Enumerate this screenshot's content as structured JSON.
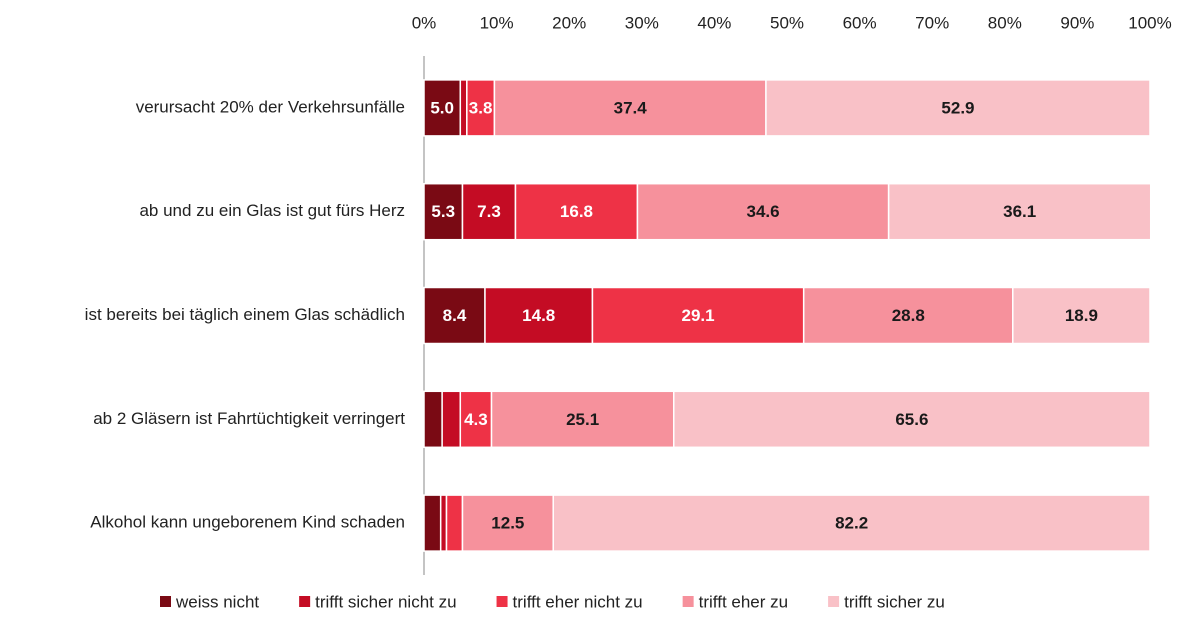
{
  "chart_data": {
    "type": "stacked-bar-horizontal",
    "categories": [
      "verursacht 20% der Verkehrsunfälle",
      "ab und zu ein Glas ist gut fürs Herz",
      "ist bereits bei täglich einem Glas schädlich",
      "ab 2 Gläsern ist Fahrtüchtigkeit verringert",
      "Alkohol kann ungeborenem Kind schaden"
    ],
    "series": [
      {
        "name": "weiss nicht",
        "color": "#7a0a14",
        "label_color": "#ffffff",
        "values": [
          5.0,
          5.3,
          8.4,
          2.5,
          2.3
        ],
        "value_labels": [
          "5.0",
          "5.3",
          "8.4",
          null,
          null
        ]
      },
      {
        "name": "trifft sicher nicht zu",
        "color": "#c40c24",
        "label_color": "#ffffff",
        "values": [
          0.9,
          7.3,
          14.8,
          2.5,
          0.8
        ],
        "value_labels": [
          null,
          "7.3",
          "14.8",
          null,
          null
        ]
      },
      {
        "name": "trifft eher nicht zu",
        "color": "#ee3246",
        "label_color": "#ffffff",
        "values": [
          3.8,
          16.8,
          29.1,
          4.3,
          2.2
        ],
        "value_labels": [
          "3.8",
          "16.8",
          "29.1",
          "4.3",
          null
        ]
      },
      {
        "name": "trifft eher zu",
        "color": "#f6919c",
        "label_color": "#1a1a1a",
        "values": [
          37.4,
          34.6,
          28.8,
          25.1,
          12.5
        ]
      },
      {
        "name": "trifft sicher zu",
        "color": "#f9c1c7",
        "label_color": "#1a1a1a",
        "values": [
          52.9,
          36.1,
          18.9,
          65.6,
          82.2
        ]
      }
    ],
    "xlim": [
      0,
      100
    ],
    "xticks": [
      {
        "value": 0,
        "label": "0%"
      },
      {
        "value": 10,
        "label": "10%"
      },
      {
        "value": 20,
        "label": "20%"
      },
      {
        "value": 30,
        "label": "30%"
      },
      {
        "value": 40,
        "label": "40%"
      },
      {
        "value": 50,
        "label": "50%"
      },
      {
        "value": 60,
        "label": "60%"
      },
      {
        "value": 70,
        "label": "70%"
      },
      {
        "value": 80,
        "label": "80%"
      },
      {
        "value": 90,
        "label": "90%"
      },
      {
        "value": 100,
        "label": "100%"
      }
    ],
    "grid": false,
    "legend": "bottom"
  }
}
